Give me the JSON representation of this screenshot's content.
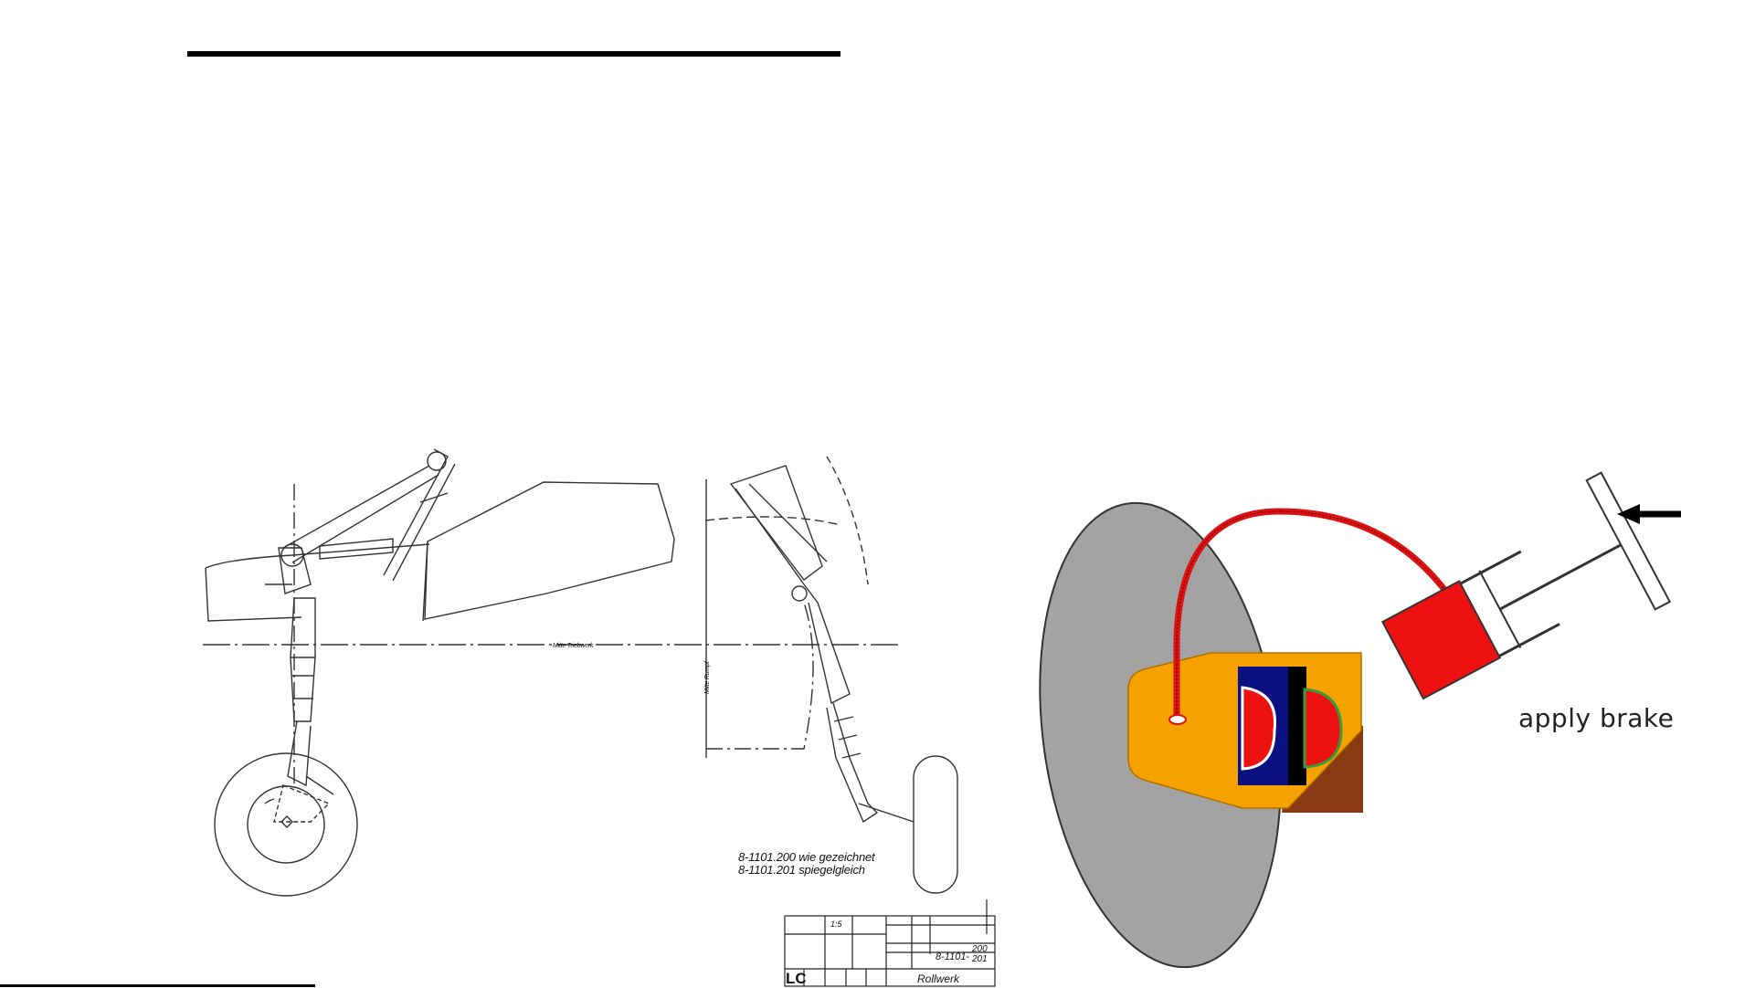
{
  "drawing": {
    "label_center_line": "Mitte Triebwerk",
    "label_fuselage_center": "Mitte Rumpf",
    "note_line1": "8-1101.200 wie gezeichnet",
    "note_line2": "8-1101.201 spiegelgleich",
    "title_block": {
      "scale": "1:5",
      "drawing_number_top": "8-1101-",
      "drawing_number_right_top": "200",
      "drawing_number_right_bottom": "201",
      "code": "LC",
      "part_name": "Rollwerk"
    }
  },
  "brake_diagram": {
    "label": "apply brake",
    "colors": {
      "disc": "#a3a3a3",
      "hydraulic_line": "#dd1111",
      "caliper": "#f5a100",
      "pad": "#ee1111",
      "piston_cylinder": "#ee1111",
      "backing": "#0a1080",
      "bracket": "#8a3a10"
    }
  }
}
